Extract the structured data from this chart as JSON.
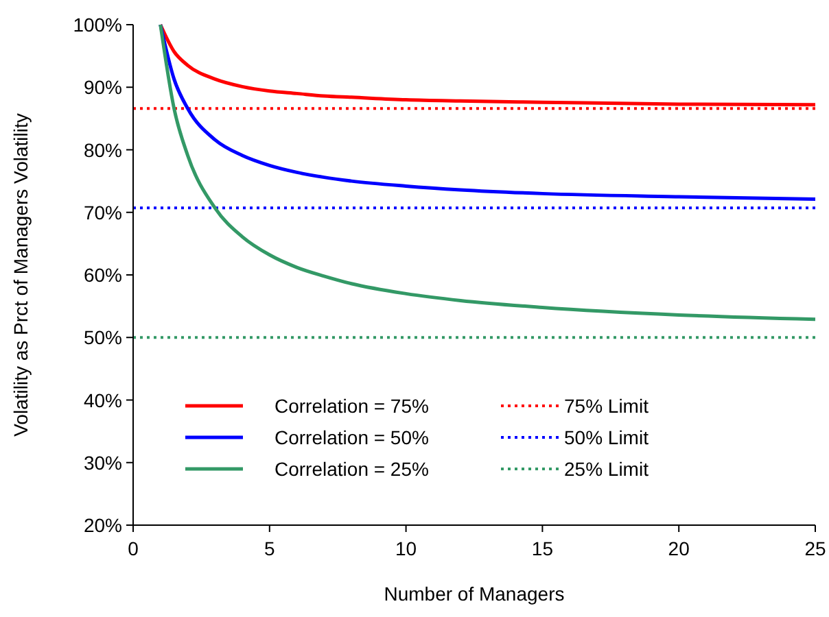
{
  "chart_data": {
    "type": "line",
    "xlabel": "Number of Managers",
    "ylabel": "Volatility as Prct of Managers Volatility",
    "x": [
      1,
      1.5,
      2,
      3,
      4,
      5,
      6,
      7,
      8,
      10,
      12,
      15,
      20,
      25
    ],
    "xlim": [
      0,
      25
    ],
    "xticks": [
      0,
      5,
      10,
      15,
      20,
      25
    ],
    "ylim": [
      20,
      100
    ],
    "yticks": [
      {
        "value": 20,
        "label": "20%"
      },
      {
        "value": 30,
        "label": "30%"
      },
      {
        "value": 40,
        "label": "40%"
      },
      {
        "value": 50,
        "label": "50%"
      },
      {
        "value": 60,
        "label": "60%"
      },
      {
        "value": 70,
        "label": "70%"
      },
      {
        "value": 80,
        "label": "80%"
      },
      {
        "value": 90,
        "label": "90%"
      },
      {
        "value": 100,
        "label": "100%"
      }
    ],
    "series": [
      {
        "name": "Correlation = 75%",
        "color": "#ff0000",
        "values": [
          100,
          95.7,
          93.5,
          91.3,
          90.1,
          89.4,
          89.0,
          88.6,
          88.4,
          88.0,
          87.8,
          87.6,
          87.3,
          87.2
        ]
      },
      {
        "name": "Correlation = 50%",
        "color": "#0000ff",
        "values": [
          100,
          91.3,
          86.6,
          81.6,
          79.1,
          77.5,
          76.4,
          75.6,
          75.0,
          74.2,
          73.6,
          73.0,
          72.5,
          72.1
        ]
      },
      {
        "name": "Correlation = 25%",
        "color": "#339966",
        "values": [
          100,
          86.6,
          79.1,
          70.7,
          66.1,
          63.2,
          61.2,
          59.8,
          58.6,
          57.0,
          55.9,
          54.8,
          53.6,
          52.9
        ]
      }
    ],
    "ref_lines": [
      {
        "axis": "y",
        "value": 86.6,
        "label": "75% Limit",
        "color": "#ff0000",
        "line_style": "dotted"
      },
      {
        "axis": "y",
        "value": 70.7,
        "label": "50% Limit",
        "color": "#0000ff",
        "line_style": "dotted"
      },
      {
        "axis": "y",
        "value": 50,
        "label": "25% Limit",
        "color": "#339966",
        "line_style": "dotted"
      }
    ],
    "legend": "left"
  }
}
